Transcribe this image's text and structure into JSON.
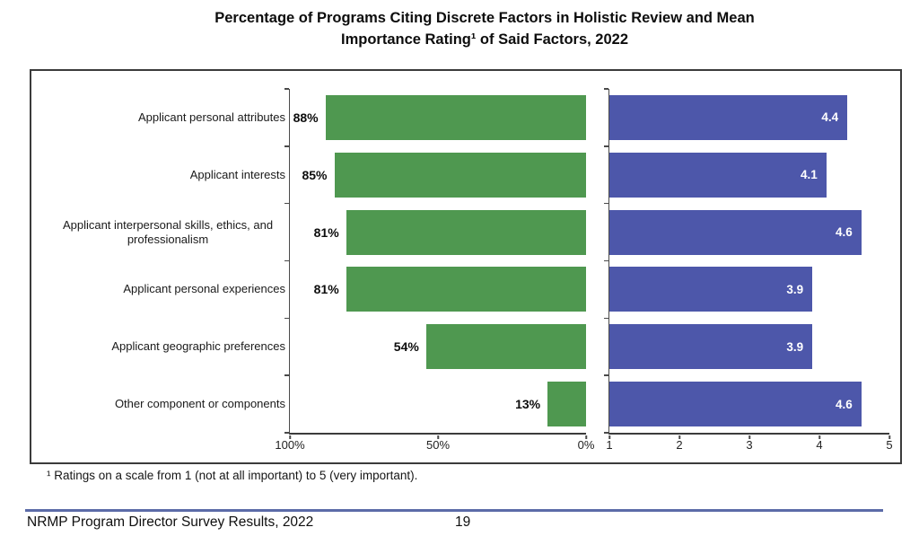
{
  "title": {
    "line1": "Percentage of Programs Citing Discrete Factors in Holistic Review and Mean",
    "line2": "Importance Rating¹ of Said Factors, 2022"
  },
  "chart_data": {
    "type": "bar",
    "orientation": "horizontal",
    "title": "Percentage of Programs Citing Discrete Factors in Holistic Review and Mean Importance Rating¹ of Said Factors, 2022",
    "categories": [
      "Applicant personal attributes",
      "Applicant interests",
      "Applicant interpersonal skills, ethics, and professionalism",
      "Applicant personal experiences",
      "Applicant geographic preferences",
      "Other component or components"
    ],
    "series": [
      {
        "name": "Percentage of programs citing factor",
        "values": [
          88,
          85,
          81,
          81,
          54,
          13
        ],
        "labels": [
          "88%",
          "85%",
          "81%",
          "81%",
          "54%",
          "13%"
        ],
        "color": "#4f9850",
        "axis": {
          "min": 0,
          "max": 100,
          "reversed": true,
          "ticks": [
            "100%",
            "50%",
            "0%"
          ]
        }
      },
      {
        "name": "Mean importance rating",
        "values": [
          4.4,
          4.1,
          4.6,
          3.9,
          3.9,
          4.6
        ],
        "labels": [
          "4.4",
          "4.1",
          "4.6",
          "3.9",
          "3.9",
          "4.6"
        ],
        "color": "#4d57aa",
        "axis": {
          "min": 1,
          "max": 5,
          "reversed": false,
          "ticks": [
            "1",
            "2",
            "3",
            "4",
            "5"
          ]
        }
      }
    ],
    "legend": false,
    "gridlines": false
  },
  "footnote": "¹ Ratings on a scale from 1 (not at all important) to 5 (very important).",
  "footer": {
    "source": "NRMP Program Director Survey Results, 2022",
    "page": "19"
  },
  "colors": {
    "green_bar": "#4f9850",
    "blue_bar": "#4d57aa",
    "footer_line": "#5b6ba8",
    "axis": "#3b3b3b"
  }
}
